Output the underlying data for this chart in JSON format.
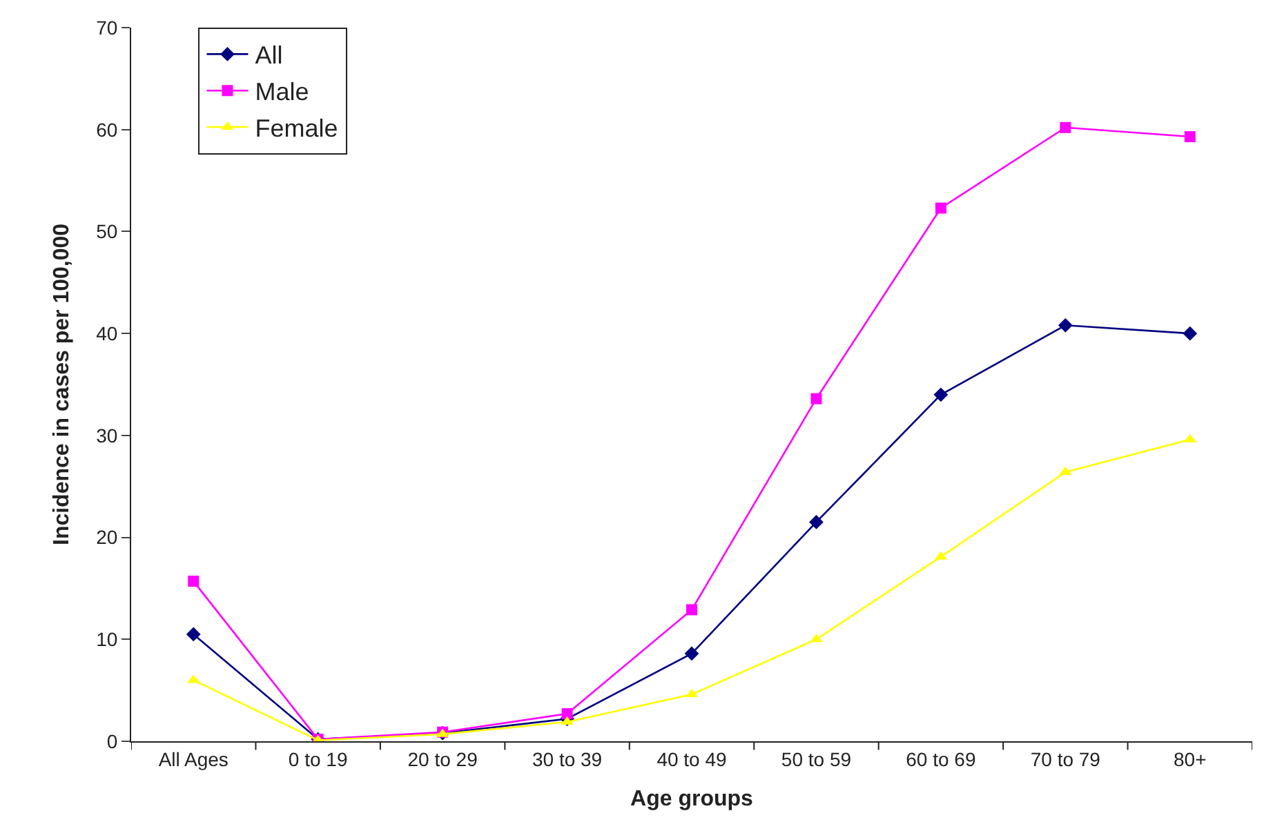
{
  "chart_data": {
    "type": "line",
    "xlabel": "Age groups",
    "ylabel": "Incidence in cases per 100,000",
    "categories": [
      "All Ages",
      "0 to 19",
      "20 to 29",
      "30 to 39",
      "40 to 49",
      "50 to 59",
      "60 to 69",
      "70 to 79",
      "80+"
    ],
    "series": [
      {
        "name": "All",
        "color": "#000080",
        "marker": "diamond",
        "values": [
          10.5,
          0.2,
          0.8,
          2.2,
          8.6,
          21.5,
          34,
          40.8,
          40
        ]
      },
      {
        "name": "Male",
        "color": "#ff00ff",
        "marker": "square",
        "values": [
          15.7,
          0.2,
          0.9,
          2.7,
          12.9,
          33.6,
          52.3,
          60.2,
          59.3
        ]
      },
      {
        "name": "Female",
        "color": "#ffff00",
        "marker": "triangle",
        "values": [
          6,
          0.1,
          0.7,
          1.9,
          4.6,
          10,
          18.1,
          26.4,
          29.6
        ]
      }
    ],
    "ylim": [
      0,
      70
    ],
    "yticks": [
      0,
      10,
      20,
      30,
      40,
      50,
      60,
      70
    ],
    "legend": "top left",
    "line_style": "solid"
  }
}
